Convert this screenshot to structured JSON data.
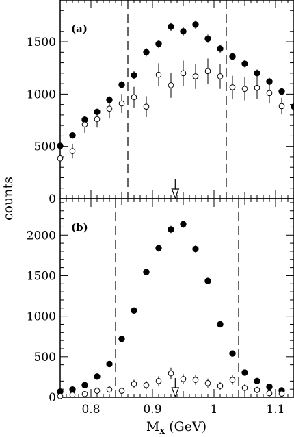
{
  "chart_data": [
    {
      "type": "scatter",
      "panel_label": "(a)",
      "ylabel": "counts",
      "xlim": [
        0.75,
        1.13
      ],
      "ylim": [
        0,
        1900
      ],
      "yticks": [
        0,
        500,
        1000,
        1500
      ],
      "cut_lines": [
        0.86,
        1.02
      ],
      "arrow_x": 0.937,
      "series": [
        {
          "marker": "filled-circle",
          "x": [
            0.75,
            0.77,
            0.79,
            0.81,
            0.83,
            0.85,
            0.87,
            0.89,
            0.91,
            0.93,
            0.95,
            0.97,
            0.99,
            1.01,
            1.03,
            1.05,
            1.07,
            1.09,
            1.11,
            1.13
          ],
          "y": [
            505,
            605,
            755,
            830,
            945,
            1090,
            1180,
            1400,
            1480,
            1645,
            1600,
            1665,
            1530,
            1435,
            1360,
            1290,
            1200,
            1120,
            1025,
            880
          ],
          "err": [
            20,
            25,
            30,
            30,
            35,
            35,
            40,
            40,
            40,
            40,
            40,
            40,
            40,
            40,
            35,
            35,
            35,
            35,
            35,
            35
          ]
        },
        {
          "marker": "open-circle",
          "x": [
            0.75,
            0.77,
            0.79,
            0.81,
            0.83,
            0.85,
            0.87,
            0.89,
            0.91,
            0.93,
            0.95,
            0.97,
            0.99,
            1.01,
            1.03,
            1.05,
            1.07,
            1.09,
            1.11
          ],
          "y": [
            385,
            455,
            710,
            760,
            860,
            910,
            970,
            880,
            1185,
            1085,
            1200,
            1170,
            1220,
            1170,
            1065,
            1050,
            1060,
            1010,
            885
          ],
          "err": [
            60,
            70,
            80,
            80,
            90,
            90,
            100,
            100,
            110,
            120,
            120,
            120,
            120,
            120,
            110,
            110,
            110,
            100,
            80
          ]
        }
      ]
    },
    {
      "type": "scatter",
      "panel_label": "(b)",
      "xlabel": "M",
      "xlabel_sub": "x",
      "xlabel_unit": " (GeV)",
      "xlim": [
        0.75,
        1.13
      ],
      "ylim": [
        0,
        2450
      ],
      "yticks": [
        0,
        500,
        1000,
        1500,
        2000
      ],
      "xticks": [
        0.8,
        0.9,
        1.0,
        1.1
      ],
      "xtick_labels": [
        "0.8",
        "0.9",
        "1",
        "1.1"
      ],
      "cut_lines": [
        0.84,
        1.04
      ],
      "arrow_x": 0.937,
      "series": [
        {
          "marker": "filled-circle",
          "x": [
            0.75,
            0.77,
            0.79,
            0.81,
            0.83,
            0.85,
            0.87,
            0.89,
            0.91,
            0.93,
            0.95,
            0.97,
            0.99,
            1.01,
            1.03,
            1.05,
            1.07,
            1.09,
            1.11
          ],
          "y": [
            70,
            95,
            150,
            255,
            410,
            720,
            1070,
            1545,
            1840,
            2070,
            2135,
            1830,
            1435,
            900,
            540,
            305,
            200,
            130,
            85
          ],
          "err": [
            10,
            12,
            15,
            20,
            25,
            30,
            35,
            40,
            45,
            45,
            45,
            45,
            40,
            30,
            25,
            20,
            15,
            12,
            10
          ]
        },
        {
          "marker": "open-circle",
          "x": [
            0.75,
            0.77,
            0.79,
            0.81,
            0.83,
            0.85,
            0.87,
            0.89,
            0.91,
            0.93,
            0.95,
            0.97,
            0.99,
            1.01,
            1.03,
            1.05,
            1.07,
            1.09,
            1.11
          ],
          "y": [
            15,
            30,
            40,
            80,
            95,
            80,
            165,
            150,
            200,
            295,
            225,
            215,
            175,
            140,
            215,
            115,
            90,
            50,
            45
          ],
          "err": [
            20,
            25,
            30,
            40,
            40,
            40,
            50,
            50,
            60,
            70,
            60,
            60,
            55,
            50,
            60,
            45,
            40,
            30,
            30
          ]
        }
      ]
    }
  ]
}
